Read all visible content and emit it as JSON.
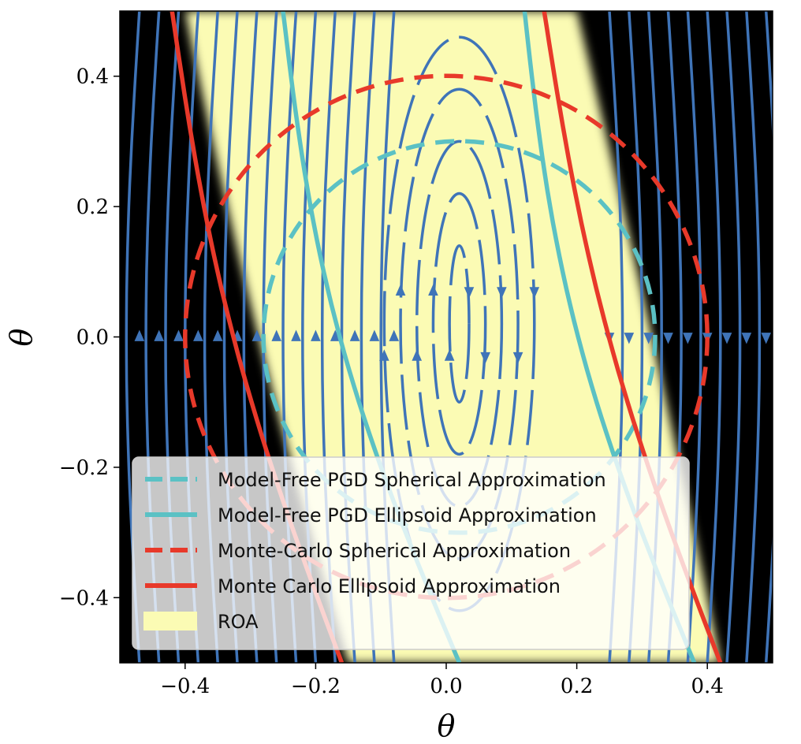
{
  "chart_data": {
    "type": "streamplot",
    "title": "",
    "xlabel": "θ",
    "ylabel": "θ",
    "xlim": [
      -0.5,
      0.5
    ],
    "ylim": [
      -0.5,
      0.5
    ],
    "xticks": [
      -0.4,
      -0.2,
      0.0,
      0.2,
      0.4
    ],
    "xtick_labels": [
      "−0.4",
      "−0.2",
      "0.0",
      "0.2",
      "0.4"
    ],
    "yticks": [
      -0.4,
      -0.2,
      0.0,
      0.2,
      0.4
    ],
    "ytick_labels": [
      "−0.4",
      "−0.2",
      "0.0",
      "0.2",
      "0.4"
    ],
    "grid": false,
    "legend_position": "lower-left",
    "colors": {
      "background": "#000000",
      "roa": "#fbfbb4",
      "streamline": "#3f74b8",
      "model_free": "#5bc1c4",
      "monte_carlo": "#e8392a"
    },
    "streamlines": {
      "x_positions": [
        -0.47,
        -0.44,
        -0.41,
        -0.38,
        -0.35,
        -0.32,
        -0.29,
        -0.26,
        -0.23,
        -0.2,
        -0.17,
        -0.14,
        -0.11,
        -0.08,
        0.25,
        0.28,
        0.31,
        0.34,
        0.37,
        0.4,
        0.43,
        0.46,
        0.49
      ],
      "closed_orbit_half_widths": [
        0.015,
        0.04,
        0.065,
        0.09,
        0.115
      ],
      "closed_orbit_center": [
        0.02,
        0.02
      ]
    },
    "series": [
      {
        "name": "Model-Free PGD Spherical Approximation",
        "shape": "circle",
        "style": "dashed",
        "color": "#5bc1c4",
        "center": [
          0.02,
          0.0
        ],
        "radius": 0.3
      },
      {
        "name": "Model-Free PGD Ellipsoid Approximation",
        "shape": "band",
        "style": "solid",
        "color": "#5bc1c4",
        "left_edge": {
          "x_top": -0.25,
          "x_bottom": 0.02,
          "curvature": 0.8
        },
        "right_edge": {
          "x_top": 0.12,
          "x_bottom": 0.38,
          "curvature": 0.8
        }
      },
      {
        "name": "Monte-Carlo Spherical Approximation",
        "shape": "circle",
        "style": "dashed",
        "color": "#e8392a",
        "center": [
          0.0,
          0.0
        ],
        "radius": 0.4
      },
      {
        "name": "Monte Carlo Ellipsoid Approximation",
        "shape": "band",
        "style": "solid",
        "color": "#e8392a",
        "left_edge": {
          "x_top": -0.42,
          "x_bottom": -0.16,
          "curvature": 0.6
        },
        "right_edge": {
          "x_top": 0.15,
          "x_bottom": 0.42,
          "curvature": 0.6
        }
      },
      {
        "name": "ROA",
        "shape": "region",
        "style": "filled",
        "color": "#fbfbb4",
        "left_boundary": {
          "x_top": -0.4,
          "x_mid": -0.3,
          "x_bottom": -0.15
        },
        "right_boundary": {
          "x_top": 0.2,
          "x_mid": 0.32,
          "x_bottom": 0.42
        }
      }
    ],
    "legend": [
      "Model-Free PGD Spherical Approximation",
      "Model-Free PGD Ellipsoid Approximation",
      "Monte-Carlo Spherical Approximation",
      "Monte Carlo Ellipsoid Approximation",
      "ROA"
    ]
  }
}
